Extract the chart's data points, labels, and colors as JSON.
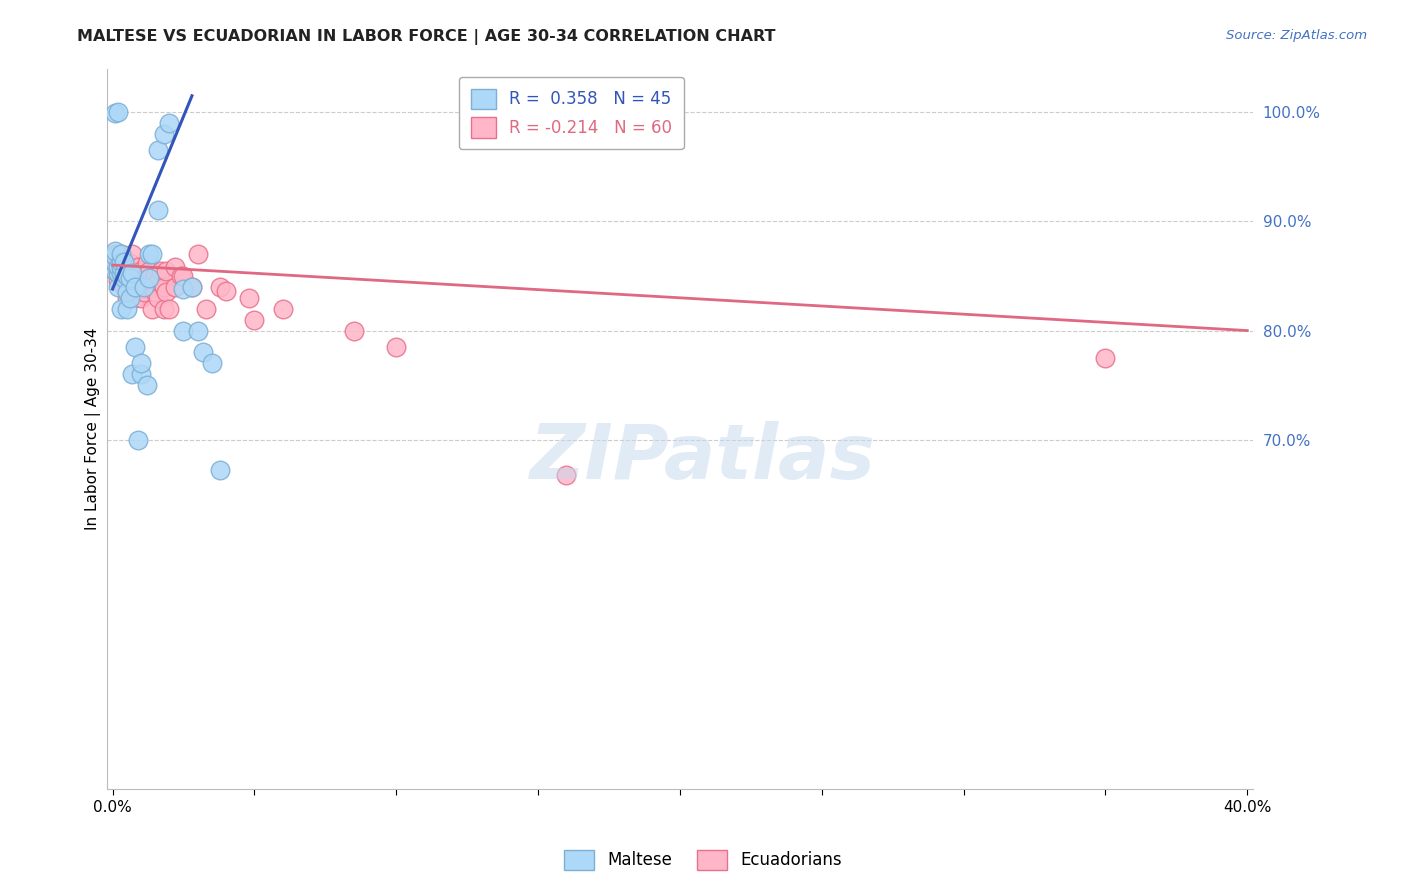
{
  "title": "MALTESE VS ECUADORIAN IN LABOR FORCE | AGE 30-34 CORRELATION CHART",
  "source": "Source: ZipAtlas.com",
  "ylabel": "In Labor Force | Age 30-34",
  "xlim": [
    -0.002,
    0.402
  ],
  "ylim": [
    0.38,
    1.04
  ],
  "xtick_positions": [
    0.0,
    0.05,
    0.1,
    0.15,
    0.2,
    0.25,
    0.3,
    0.35,
    0.4
  ],
  "xticklabels": [
    "0.0%",
    "",
    "",
    "",
    "",
    "",
    "",
    "",
    "40.0%"
  ],
  "ytick_right_positions": [
    1.0,
    0.9,
    0.8,
    0.7
  ],
  "ytick_right_labels": [
    "100.0%",
    "90.0%",
    "80.0%",
    "70.0%"
  ],
  "grid_color": "#cccccc",
  "background_color": "#ffffff",
  "maltese_color": "#add8f7",
  "maltese_edge_color": "#7bafd4",
  "ecuadorian_color": "#ffb6c8",
  "ecuadorian_edge_color": "#e8708a",
  "maltese_line_color": "#3355bb",
  "ecuadorian_line_color": "#e06882",
  "legend_blue_label": "R =  0.358   N = 45",
  "legend_pink_label": "R = -0.214   N = 60",
  "watermark_text": "ZIPatlas",
  "watermark_color": "#c5d8ee",
  "title_color": "#222222",
  "source_color": "#4472c4",
  "right_axis_color": "#4472c4",
  "maltese_x": [
    0.001,
    0.001,
    0.001,
    0.001,
    0.001,
    0.002,
    0.002,
    0.002,
    0.002,
    0.003,
    0.003,
    0.003,
    0.003,
    0.003,
    0.004,
    0.004,
    0.004,
    0.005,
    0.005,
    0.005,
    0.006,
    0.006,
    0.007,
    0.007,
    0.008,
    0.008,
    0.009,
    0.01,
    0.01,
    0.011,
    0.012,
    0.013,
    0.013,
    0.014,
    0.016,
    0.016,
    0.018,
    0.02,
    0.025,
    0.025,
    0.028,
    0.03,
    0.032,
    0.035,
    0.038
  ],
  "maltese_y": [
    0.855,
    0.862,
    0.868,
    0.873,
    0.999,
    0.84,
    0.853,
    0.858,
    1.0,
    0.82,
    0.853,
    0.858,
    0.863,
    0.87,
    0.848,
    0.853,
    0.863,
    0.82,
    0.835,
    0.85,
    0.83,
    0.848,
    0.76,
    0.853,
    0.785,
    0.84,
    0.7,
    0.76,
    0.77,
    0.84,
    0.75,
    0.848,
    0.87,
    0.87,
    0.91,
    0.965,
    0.98,
    0.99,
    0.8,
    0.838,
    0.84,
    0.8,
    0.78,
    0.77,
    0.672
  ],
  "ecuadorian_x": [
    0.001,
    0.001,
    0.001,
    0.002,
    0.002,
    0.002,
    0.003,
    0.003,
    0.003,
    0.004,
    0.004,
    0.005,
    0.005,
    0.005,
    0.006,
    0.006,
    0.006,
    0.007,
    0.007,
    0.007,
    0.008,
    0.008,
    0.009,
    0.009,
    0.01,
    0.01,
    0.011,
    0.011,
    0.012,
    0.012,
    0.013,
    0.013,
    0.014,
    0.014,
    0.015,
    0.015,
    0.016,
    0.016,
    0.017,
    0.018,
    0.018,
    0.019,
    0.019,
    0.02,
    0.022,
    0.022,
    0.024,
    0.025,
    0.028,
    0.03,
    0.033,
    0.038,
    0.04,
    0.048,
    0.05,
    0.06,
    0.085,
    0.1,
    0.16,
    0.35
  ],
  "ecuadorian_y": [
    0.855,
    0.862,
    0.87,
    0.845,
    0.855,
    0.862,
    0.855,
    0.862,
    0.87,
    0.84,
    0.855,
    0.83,
    0.848,
    0.858,
    0.84,
    0.855,
    0.862,
    0.84,
    0.855,
    0.87,
    0.83,
    0.848,
    0.84,
    0.858,
    0.83,
    0.855,
    0.835,
    0.848,
    0.85,
    0.862,
    0.84,
    0.855,
    0.82,
    0.84,
    0.835,
    0.85,
    0.83,
    0.845,
    0.855,
    0.82,
    0.84,
    0.835,
    0.855,
    0.82,
    0.84,
    0.858,
    0.85,
    0.85,
    0.84,
    0.87,
    0.82,
    0.84,
    0.836,
    0.83,
    0.81,
    0.82,
    0.8,
    0.785,
    0.668,
    0.775
  ],
  "blue_line_x0": 0.0,
  "blue_line_y0": 0.838,
  "blue_line_x1": 0.028,
  "blue_line_y1": 1.015,
  "pink_line_x0": 0.0,
  "pink_line_y0": 0.86,
  "pink_line_x1": 0.4,
  "pink_line_y1": 0.8
}
